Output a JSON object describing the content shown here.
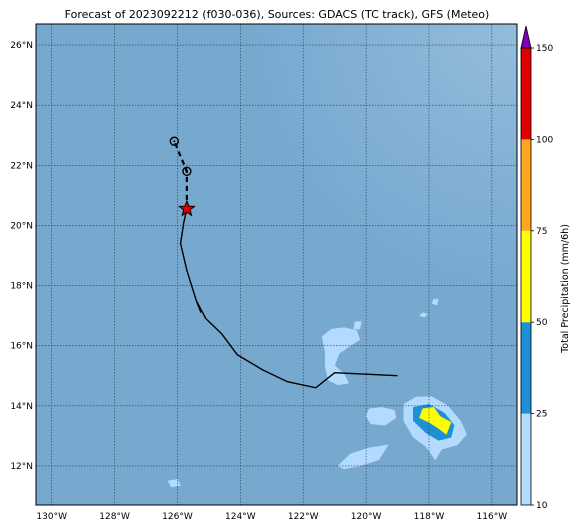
{
  "title": "Forecast of 2023092212 (f030-036), Sources: GDACS (TC track), GFS (Meteo)",
  "map": {
    "extent": {
      "lon_min": -130.5,
      "lon_max": -115.2,
      "lat_min": 10.7,
      "lat_max": 26.7
    },
    "ocean_color": "#77a9cf",
    "x_ticks": [
      {
        "lon": -130,
        "label": "130°W"
      },
      {
        "lon": -128,
        "label": "128°W"
      },
      {
        "lon": -126,
        "label": "126°W"
      },
      {
        "lon": -124,
        "label": "124°W"
      },
      {
        "lon": -122,
        "label": "122°W"
      },
      {
        "lon": -120,
        "label": "120°W"
      },
      {
        "lon": -118,
        "label": "118°W"
      },
      {
        "lon": -116,
        "label": "116°W"
      }
    ],
    "y_ticks": [
      {
        "lat": 12,
        "label": "12°N"
      },
      {
        "lat": 14,
        "label": "14°N"
      },
      {
        "lat": 16,
        "label": "16°N"
      },
      {
        "lat": 18,
        "label": "18°N"
      },
      {
        "lat": 20,
        "label": "20°N"
      },
      {
        "lat": 22,
        "label": "22°N"
      },
      {
        "lat": 24,
        "label": "24°N"
      },
      {
        "lat": 26,
        "label": "26°N"
      }
    ],
    "observed_track": [
      [
        -119.0,
        15.0
      ],
      [
        -121.0,
        15.1
      ],
      [
        -121.6,
        14.6
      ],
      [
        -122.5,
        14.8
      ],
      [
        -123.3,
        15.2
      ],
      [
        -124.1,
        15.7
      ],
      [
        -124.6,
        16.4
      ],
      [
        -125.1,
        16.9
      ],
      [
        -125.4,
        17.5
      ],
      [
        -125.7,
        18.5
      ],
      [
        -125.9,
        19.4
      ],
      [
        -125.8,
        20.1
      ],
      [
        -125.7,
        20.55
      ]
    ],
    "hook_segment": [
      [
        -125.4,
        17.5
      ],
      [
        -125.25,
        17.1
      ]
    ],
    "forecast_track": [
      [
        -125.7,
        20.55
      ],
      [
        -125.7,
        21.8
      ],
      [
        -126.1,
        22.8
      ]
    ],
    "forecast_points": [
      [
        -125.7,
        21.8
      ],
      [
        -126.1,
        22.8
      ]
    ],
    "current_position": [
      -125.7,
      20.55
    ],
    "precip_areas": [
      {
        "level": "light",
        "color": "#b3dbff",
        "points": [
          [
            -121.4,
            16.3
          ],
          [
            -121.1,
            16.55
          ],
          [
            -120.7,
            16.6
          ],
          [
            -120.3,
            16.5
          ],
          [
            -120.2,
            16.2
          ],
          [
            -120.5,
            16.0
          ],
          [
            -120.85,
            15.75
          ],
          [
            -121.0,
            15.35
          ],
          [
            -120.7,
            15.05
          ],
          [
            -120.55,
            14.75
          ],
          [
            -120.9,
            14.7
          ],
          [
            -121.2,
            14.85
          ],
          [
            -121.3,
            15.3
          ],
          [
            -121.3,
            15.8
          ]
        ]
      },
      {
        "level": "light",
        "color": "#b3dbff",
        "points": [
          [
            -120.35,
            16.8
          ],
          [
            -120.15,
            16.8
          ],
          [
            -120.2,
            16.55
          ],
          [
            -120.4,
            16.55
          ]
        ]
      },
      {
        "level": "light",
        "color": "#b3dbff",
        "points": [
          [
            -119.9,
            13.9
          ],
          [
            -119.5,
            13.95
          ],
          [
            -119.1,
            13.85
          ],
          [
            -119.05,
            13.6
          ],
          [
            -119.4,
            13.35
          ],
          [
            -119.85,
            13.4
          ],
          [
            -120.0,
            13.65
          ]
        ]
      },
      {
        "level": "light",
        "color": "#b3dbff",
        "points": [
          [
            -120.9,
            12.0
          ],
          [
            -120.5,
            12.4
          ],
          [
            -119.9,
            12.6
          ],
          [
            -119.3,
            12.7
          ],
          [
            -119.6,
            12.2
          ],
          [
            -120.2,
            12.0
          ],
          [
            -120.7,
            11.9
          ]
        ]
      },
      {
        "level": "light",
        "color": "#b3dbff",
        "points": [
          [
            -126.3,
            11.5
          ],
          [
            -126.0,
            11.55
          ],
          [
            -125.9,
            11.35
          ],
          [
            -126.2,
            11.3
          ]
        ]
      },
      {
        "level": "light",
        "color": "#b3dbff",
        "points": [
          [
            -117.85,
            17.55
          ],
          [
            -117.7,
            17.55
          ],
          [
            -117.75,
            17.35
          ],
          [
            -117.9,
            17.4
          ]
        ]
      },
      {
        "level": "light",
        "color": "#b3dbff",
        "points": [
          [
            -118.2,
            17.1
          ],
          [
            -118.05,
            17.05
          ],
          [
            -118.15,
            16.95
          ],
          [
            -118.3,
            17.0
          ]
        ]
      },
      {
        "level": "light",
        "color": "#b3dbff",
        "points": [
          [
            -118.8,
            14.05
          ],
          [
            -118.4,
            14.3
          ],
          [
            -117.9,
            14.3
          ],
          [
            -117.4,
            14.0
          ],
          [
            -117.0,
            13.5
          ],
          [
            -116.8,
            13.05
          ],
          [
            -117.1,
            12.7
          ],
          [
            -117.6,
            12.55
          ],
          [
            -117.8,
            12.2
          ],
          [
            -118.1,
            12.65
          ],
          [
            -118.5,
            12.95
          ],
          [
            -118.8,
            13.5
          ]
        ]
      },
      {
        "level": "moderate",
        "color": "#1e90d6",
        "points": [
          [
            -118.5,
            13.95
          ],
          [
            -118.0,
            14.05
          ],
          [
            -117.5,
            13.75
          ],
          [
            -117.2,
            13.35
          ],
          [
            -117.3,
            12.95
          ],
          [
            -117.7,
            12.85
          ],
          [
            -118.1,
            13.1
          ],
          [
            -118.5,
            13.5
          ]
        ]
      },
      {
        "level": "heavy",
        "color": "#ffff00",
        "points": [
          [
            -118.2,
            13.9
          ],
          [
            -117.85,
            13.95
          ],
          [
            -117.65,
            13.65
          ],
          [
            -117.3,
            13.45
          ],
          [
            -117.45,
            13.05
          ],
          [
            -117.7,
            13.25
          ],
          [
            -118.0,
            13.45
          ],
          [
            -118.3,
            13.6
          ]
        ]
      }
    ]
  },
  "colorbar": {
    "label": "Total Precipitation (mm/6h)",
    "levels": [
      10,
      25,
      50,
      75,
      100,
      150
    ],
    "colors": [
      "#b3dbff",
      "#1e90d6",
      "#ffff00",
      "#ffa520",
      "#e00000"
    ],
    "extend_color": "#8000c0"
  }
}
